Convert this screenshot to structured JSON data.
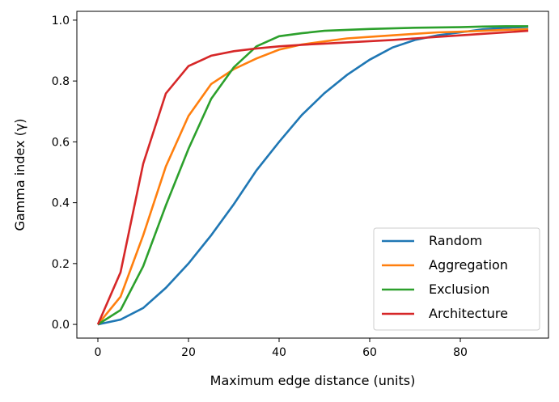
{
  "chart_data": {
    "type": "line",
    "title": "",
    "xlabel": "Maximum edge distance (units)",
    "ylabel": "Gamma index (γ)",
    "xlim": [
      -4.64,
      99.46
    ],
    "ylim": [
      -0.045,
      1.029
    ],
    "xticks": [
      0,
      20,
      40,
      60,
      80
    ],
    "yticks": [
      0.0,
      0.2,
      0.4,
      0.6,
      0.8,
      1.0
    ],
    "xtick_labels": [
      "0",
      "20",
      "40",
      "60",
      "80"
    ],
    "ytick_labels": [
      "0.0",
      "0.2",
      "0.4",
      "0.6",
      "0.8",
      "1.0"
    ],
    "grid": false,
    "legend_position": "lower-right",
    "x": [
      0,
      5,
      10,
      15,
      20,
      25,
      30,
      35,
      40,
      45,
      50,
      55,
      60,
      65,
      70,
      75,
      80,
      85,
      90,
      95
    ],
    "series": [
      {
        "name": "Random",
        "color": "#1f77b4",
        "values": [
          0,
          0.016,
          0.054,
          0.12,
          0.2,
          0.293,
          0.395,
          0.506,
          0.6,
          0.688,
          0.76,
          0.82,
          0.87,
          0.91,
          0.935,
          0.95,
          0.96,
          0.97,
          0.975,
          0.978
        ]
      },
      {
        "name": "Aggregation",
        "color": "#ff7f0e",
        "values": [
          0,
          0.091,
          0.293,
          0.519,
          0.685,
          0.79,
          0.839,
          0.874,
          0.903,
          0.92,
          0.93,
          0.94,
          0.945,
          0.95,
          0.955,
          0.96,
          0.962,
          0.965,
          0.968,
          0.97
        ]
      },
      {
        "name": "Exclusion",
        "color": "#2ca02c",
        "values": [
          0,
          0.047,
          0.191,
          0.391,
          0.577,
          0.741,
          0.845,
          0.914,
          0.947,
          0.957,
          0.965,
          0.968,
          0.971,
          0.973,
          0.975,
          0.976,
          0.977,
          0.979,
          0.98,
          0.98
        ]
      },
      {
        "name": "Architecture",
        "color": "#d62728",
        "values": [
          0,
          0.171,
          0.528,
          0.759,
          0.849,
          0.883,
          0.898,
          0.907,
          0.914,
          0.919,
          0.923,
          0.927,
          0.931,
          0.935,
          0.94,
          0.945,
          0.95,
          0.955,
          0.96,
          0.965
        ]
      }
    ]
  }
}
